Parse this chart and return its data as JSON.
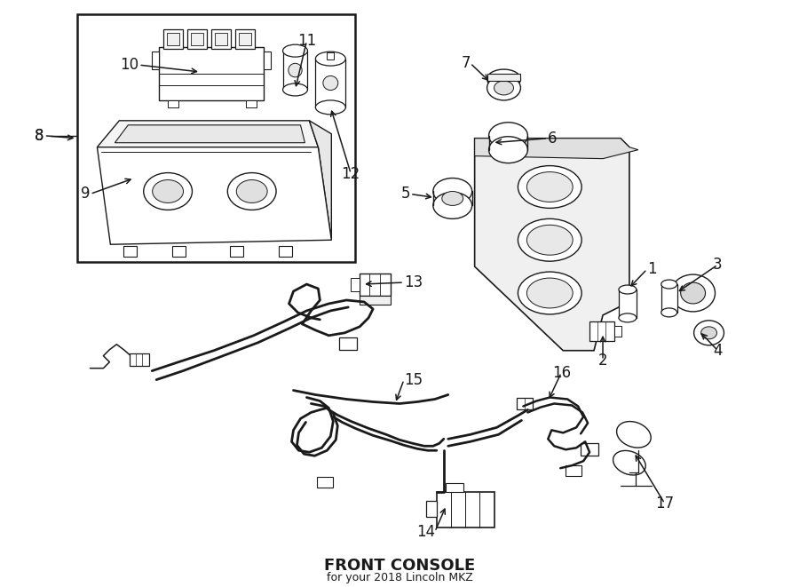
{
  "title": "FRONT CONSOLE",
  "subtitle": "for your 2018 Lincoln MKZ",
  "bg_color": "#ffffff",
  "line_color": "#1a1a1a",
  "fig_width": 9.0,
  "fig_height": 6.61,
  "dpi": 100
}
